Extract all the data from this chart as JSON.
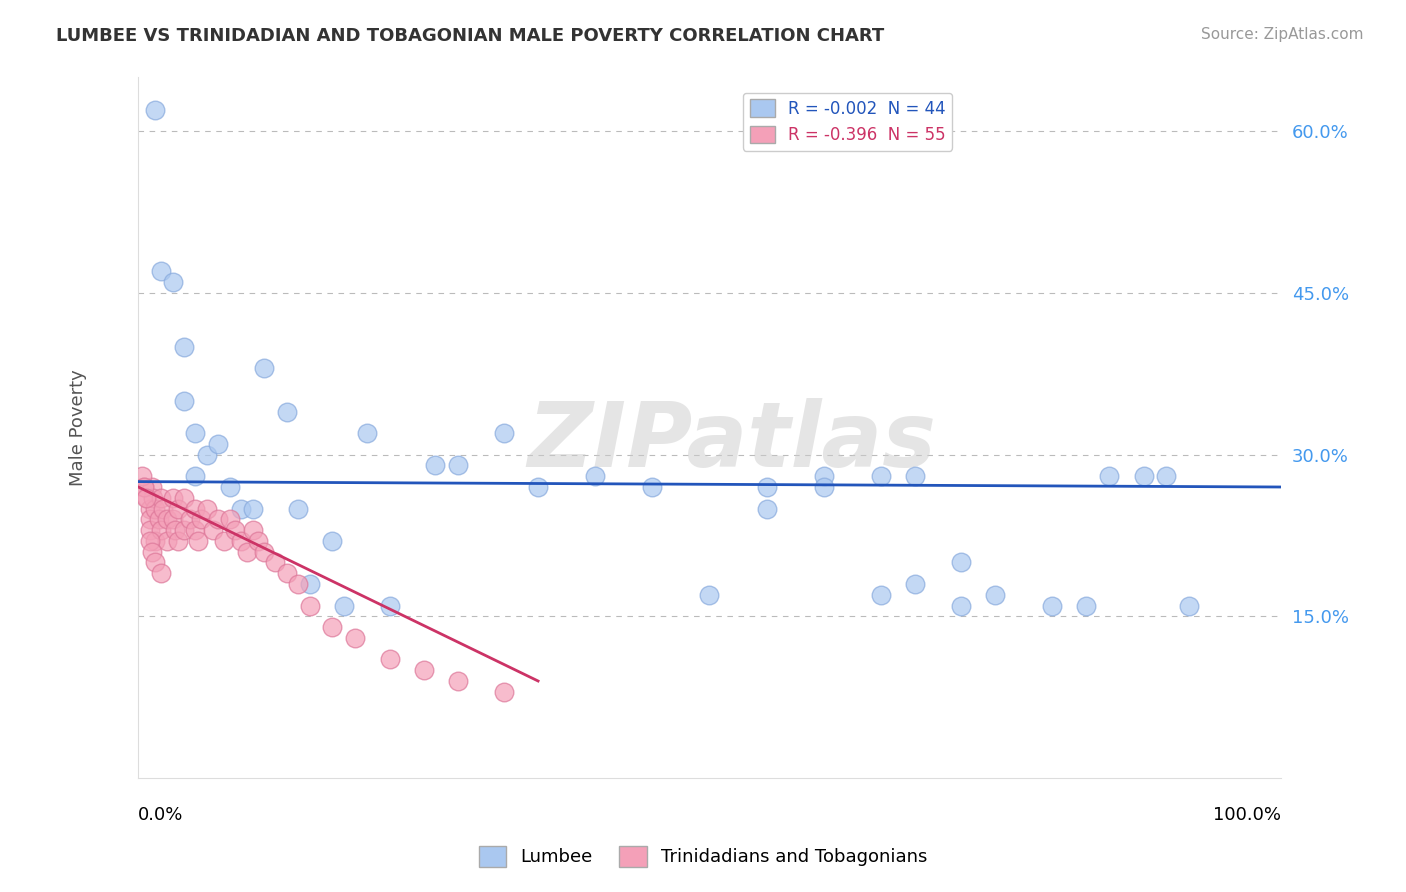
{
  "title": "LUMBEE VS TRINIDADIAN AND TOBAGONIAN MALE POVERTY CORRELATION CHART",
  "source": "Source: ZipAtlas.com",
  "ylabel": "Male Poverty",
  "watermark": "ZIPatlas",
  "legend_lumbee": "R = -0.002  N = 44",
  "legend_trini": "R = -0.396  N = 55",
  "legend_label1": "Lumbee",
  "legend_label2": "Trinidadians and Tobagonians",
  "lumbee_color": "#aac8f0",
  "lumbee_edge_color": "#88aadd",
  "trini_color": "#f4a0b8",
  "trini_edge_color": "#dd7799",
  "lumbee_line_color": "#2255bb",
  "trini_line_color": "#cc3366",
  "background": "#ffffff",
  "grid_color": "#bbbbbb",
  "ytick_color": "#4499ee",
  "xlim": [
    0,
    100
  ],
  "ylim": [
    0,
    65
  ],
  "yticks": [
    15,
    30,
    45,
    60
  ],
  "ytick_labels": [
    "15.0%",
    "30.0%",
    "45.0%",
    "60.0%"
  ],
  "lumbee_scatter_x": [
    1.5,
    2,
    3,
    4,
    4,
    5,
    5,
    6,
    7,
    8,
    9,
    10,
    11,
    13,
    14,
    15,
    17,
    18,
    20,
    22,
    26,
    28,
    32,
    35,
    40,
    45,
    50,
    55,
    60,
    65,
    68,
    72,
    75,
    80,
    83,
    85,
    88,
    90,
    92,
    55,
    60,
    65,
    68,
    72
  ],
  "lumbee_scatter_y": [
    62,
    47,
    46,
    40,
    35,
    32,
    28,
    30,
    31,
    27,
    25,
    25,
    38,
    34,
    25,
    18,
    22,
    16,
    32,
    16,
    29,
    29,
    32,
    27,
    28,
    27,
    17,
    27,
    28,
    17,
    18,
    20,
    17,
    16,
    16,
    28,
    28,
    28,
    16,
    25,
    27,
    28,
    28,
    16
  ],
  "trini_scatter_x": [
    0.5,
    0.8,
    1.0,
    1.0,
    1.0,
    1.2,
    1.3,
    1.5,
    1.5,
    1.8,
    2.0,
    2.0,
    2.2,
    2.5,
    2.5,
    3.0,
    3.0,
    3.2,
    3.5,
    3.5,
    4.0,
    4.0,
    4.5,
    5.0,
    5.0,
    5.2,
    5.5,
    6.0,
    6.5,
    7.0,
    7.5,
    8.0,
    8.5,
    9.0,
    9.5,
    10.0,
    10.5,
    11.0,
    12.0,
    13.0,
    14.0,
    15.0,
    17.0,
    19.0,
    22.0,
    25.0,
    28.0,
    32.0,
    0.3,
    0.5,
    0.7,
    1.0,
    1.2,
    1.5,
    2.0
  ],
  "trini_scatter_y": [
    27,
    26,
    25,
    24,
    23,
    27,
    26,
    25,
    22,
    24,
    26,
    23,
    25,
    24,
    22,
    26,
    24,
    23,
    25,
    22,
    26,
    23,
    24,
    25,
    23,
    22,
    24,
    25,
    23,
    24,
    22,
    24,
    23,
    22,
    21,
    23,
    22,
    21,
    20,
    19,
    18,
    16,
    14,
    13,
    11,
    10,
    9,
    8,
    28,
    27,
    26,
    22,
    21,
    20,
    19
  ],
  "lumbee_line_x": [
    0,
    100
  ],
  "lumbee_line_y": [
    27.5,
    27.0
  ],
  "trini_line_x_start": 0,
  "trini_line_x_end": 35,
  "trini_line_y_start": 27,
  "trini_line_y_end": 9
}
